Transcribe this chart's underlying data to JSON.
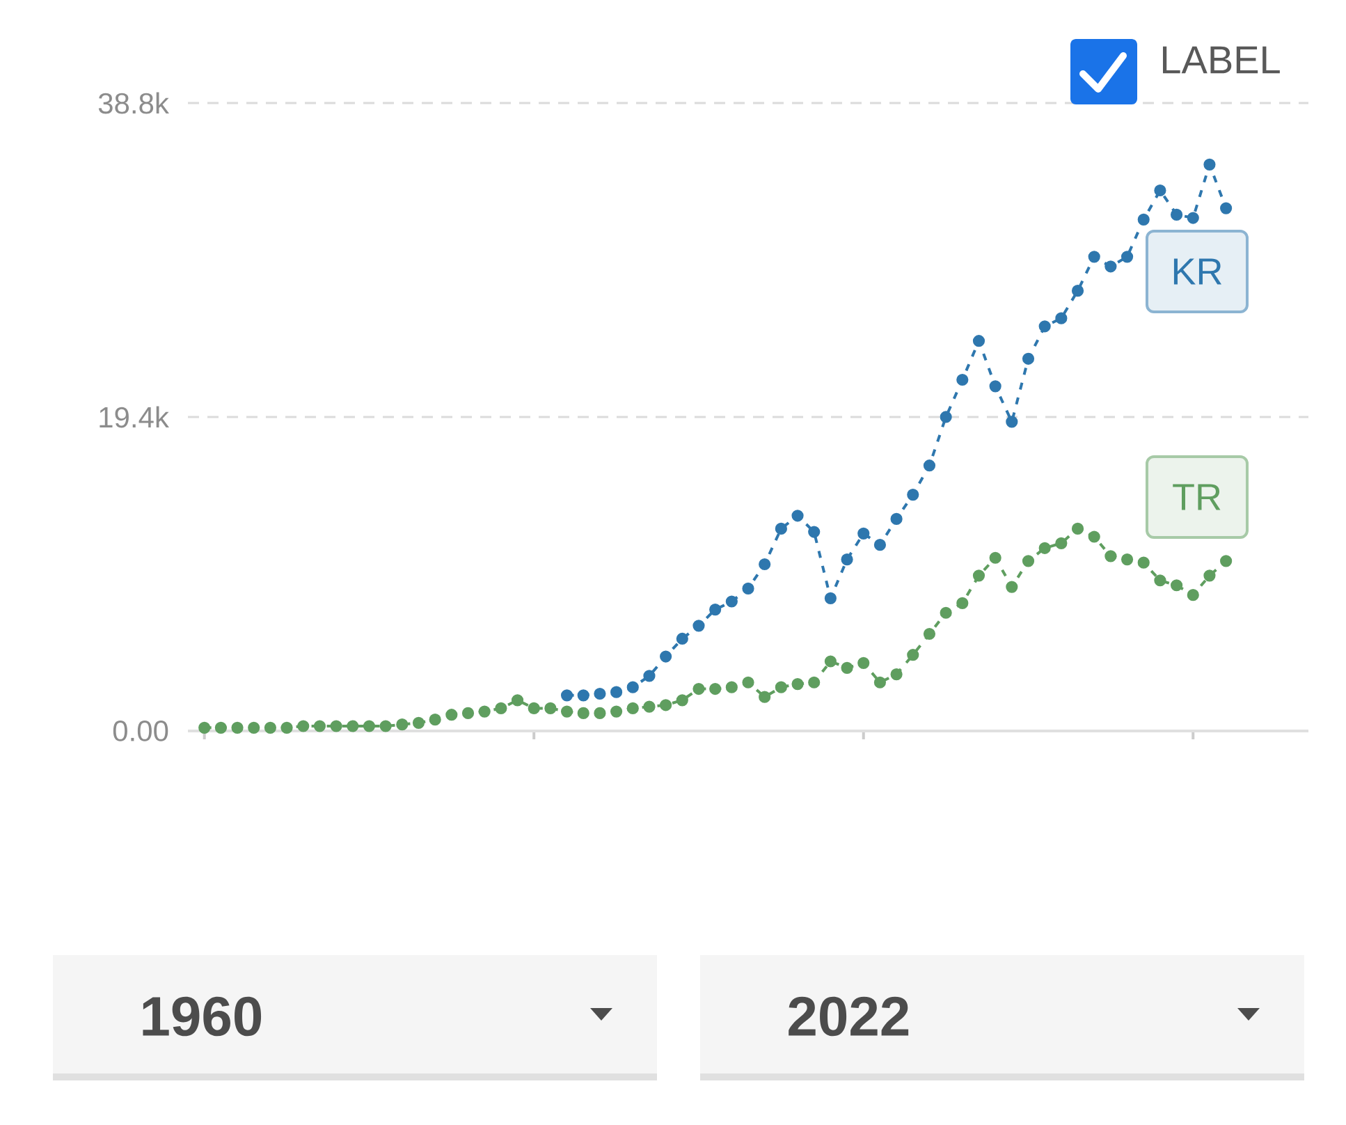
{
  "chart_data": {
    "type": "line",
    "categories": [
      null,
      null,
      null,
      null,
      null,
      null,
      null,
      null,
      null,
      null,
      null,
      null,
      null,
      null,
      null,
      null,
      null,
      null,
      null,
      null,
      null,
      null,
      null,
      null,
      null,
      null,
      null,
      null,
      null,
      null,
      null,
      null,
      null,
      null,
      null,
      null,
      null,
      null,
      null,
      null,
      null,
      null,
      null,
      null,
      null,
      null,
      null,
      null,
      null,
      null,
      null,
      null,
      null,
      null,
      null,
      null,
      null,
      null,
      null,
      null,
      null,
      null,
      null
    ],
    "series": [
      {
        "name": "KR",
        "color": "#2e77ae",
        "values": [
          null,
          null,
          null,
          null,
          null,
          null,
          null,
          null,
          null,
          null,
          null,
          null,
          null,
          null,
          null,
          null,
          null,
          null,
          null,
          null,
          null,
          null,
          2200,
          2200,
          2300,
          2400,
          2700,
          3400,
          4600,
          5700,
          6500,
          7500,
          8000,
          8800,
          10300,
          12500,
          13300,
          12300,
          8200,
          10600,
          12200,
          11500,
          13100,
          14600,
          16400,
          19400,
          21700,
          24100,
          21300,
          19100,
          23000,
          25000,
          25500,
          27200,
          29300,
          28700,
          29300,
          31600,
          33400,
          31900,
          31700,
          35000,
          32300
        ]
      },
      {
        "name": "TR",
        "color": "#5f9e5f",
        "values": [
          200,
          200,
          200,
          200,
          200,
          200,
          300,
          300,
          300,
          300,
          300,
          300,
          400,
          500,
          700,
          1000,
          1100,
          1200,
          1400,
          1900,
          1400,
          1400,
          1200,
          1100,
          1100,
          1200,
          1400,
          1500,
          1600,
          1900,
          2600,
          2600,
          2700,
          3000,
          2100,
          2700,
          2900,
          3000,
          4300,
          3900,
          4200,
          3000,
          3500,
          4700,
          6000,
          7300,
          7900,
          9600,
          10700,
          8900,
          10500,
          11300,
          11600,
          12500,
          12000,
          10800,
          10600,
          10400,
          9300,
          9000,
          8400,
          9600,
          10500
        ]
      }
    ],
    "ylim": [
      0,
      38800
    ],
    "yticks": [
      {
        "value": 0,
        "label": "0.00"
      },
      {
        "value": 19400,
        "label": "19.4k"
      },
      {
        "value": 38800,
        "label": "38.8k"
      }
    ],
    "tick_labels": "y",
    "grid": "y",
    "marker": "circle",
    "line_style": "dashed",
    "annotations": [
      "LABEL",
      "1960",
      "2022"
    ]
  }
}
